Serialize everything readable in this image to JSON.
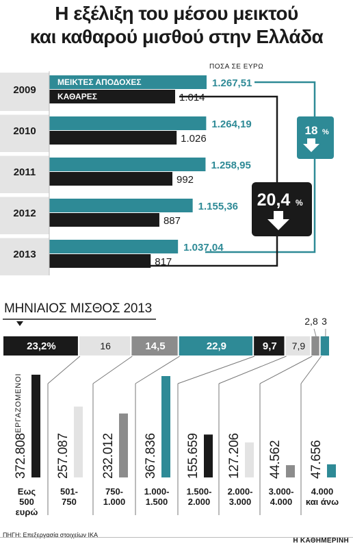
{
  "title_line1": "Η εξέλιξη του μέσου μεικτού",
  "title_line2": "και καθαρού μισθού στην Ελλάδα",
  "chart_data": [
    {
      "type": "bar",
      "unit_label": "ΠΟΣΑ ΣΕ ΕΥΡΩ",
      "categories": [
        "2009",
        "2010",
        "2011",
        "2012",
        "2013"
      ],
      "series": [
        {
          "name": "ΜΕΙΚΤΕΣ ΑΠΟΔΟΧΕΣ",
          "values": [
            1267.51,
            1264.19,
            1258.95,
            1155.36,
            1037.04
          ],
          "labels": [
            "1.267,51",
            "1.264,19",
            "1.258,95",
            "1.155,36",
            "1.037,04"
          ],
          "color": "#2e8a96"
        },
        {
          "name": "ΚΑΘΑΡΕΣ",
          "values": [
            1014,
            1026,
            992,
            887,
            817
          ],
          "labels": [
            "1.014",
            "1.026",
            "992",
            "887",
            "817"
          ],
          "color": "#1a1a1a"
        }
      ],
      "annotations": [
        {
          "value": "18",
          "unit": "%",
          "series": "ΜΕΙΚΤΕΣ ΑΠΟΔΟΧΕΣ",
          "direction": "down"
        },
        {
          "value": "20,4",
          "unit": "%",
          "series": "ΚΑΘΑΡΕΣ",
          "direction": "down"
        }
      ]
    },
    {
      "type": "bar",
      "title": "ΜΗΝΙΑΙΟΣ ΜΙΣΘΟΣ 2013",
      "value_axis_label": "ΕΡΓΑΖΟΜΕΝΟΙ",
      "categories": [
        "Εως 500 ευρώ",
        "501-750",
        "750-1.000",
        "1.000-1.500",
        "1.500-2.000",
        "2.000-3.000",
        "3.000-4.000",
        "4.000 και άνω"
      ],
      "category_lines": [
        [
          "Εως",
          "500",
          "ευρώ"
        ],
        [
          "501-",
          "750"
        ],
        [
          "750-",
          "1.000"
        ],
        [
          "1.000-",
          "1.500"
        ],
        [
          "1.500-",
          "2.000"
        ],
        [
          "2.000-",
          "3.000"
        ],
        [
          "3.000-",
          "4.000"
        ],
        [
          "4.000",
          "και άνω"
        ]
      ],
      "values": [
        372808,
        257087,
        232012,
        367836,
        155659,
        127206,
        44562,
        47656
      ],
      "value_labels": [
        "372.808",
        "257.087",
        "232.012",
        "367.836",
        "155.659",
        "127.206",
        "44.562",
        "47.656"
      ],
      "shares": [
        23.2,
        16,
        14.5,
        22.9,
        9.7,
        7.9,
        2.8,
        3
      ],
      "share_labels": [
        "23,2%",
        "16",
        "14,5",
        "22,9",
        "9,7",
        "7,9",
        "2,8",
        "3"
      ],
      "colors": [
        "#1a1a1a",
        "#e3e3e3",
        "#8c8c8c",
        "#2e8a96",
        "#1a1a1a",
        "#e3e3e3",
        "#8c8c8c",
        "#2e8a96"
      ],
      "share_text_colors": [
        "#ffffff",
        "#1a1a1a",
        "#ffffff",
        "#ffffff",
        "#ffffff",
        "#1a1a1a",
        "#1a1a1a",
        "#1a1a1a"
      ]
    }
  ],
  "source": "ΠΗΓΗ: Επεξεργασία στοιχείων ΙΚΑ",
  "brand": "Η ΚΑΘΗΜΕΡΙΝΗ"
}
